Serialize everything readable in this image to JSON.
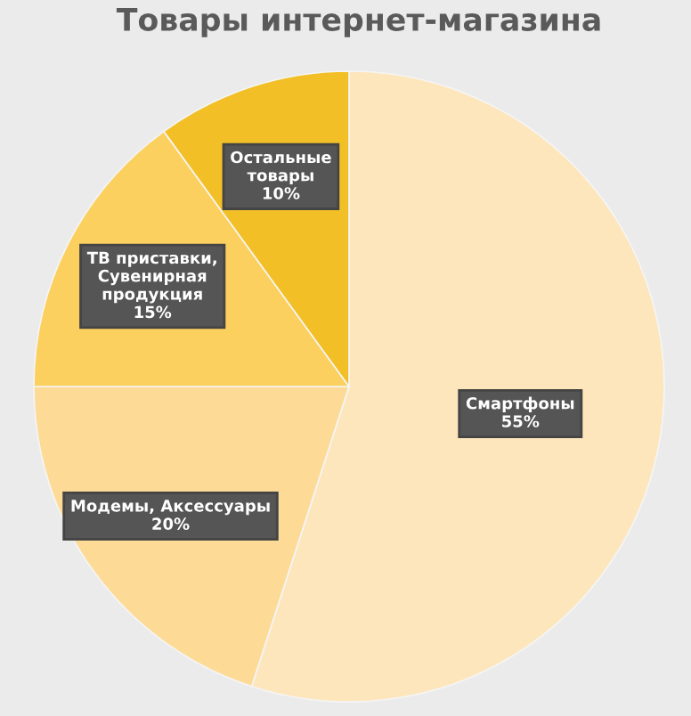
{
  "chart_data": {
    "type": "pie",
    "title": "Товары интернет-магазина",
    "categories": [
      "Смартфоны",
      "Модемы, Аксессуары",
      "ТВ приставки,\nСувенирная\nпродукция",
      "Остальные\nтовары"
    ],
    "values": [
      55,
      20,
      15,
      10
    ],
    "colors": [
      "#fde6bb",
      "#fddb96",
      "#fcd05e",
      "#f2c026"
    ],
    "value_labels": [
      "55%",
      "20%",
      "15%",
      "10%"
    ]
  }
}
